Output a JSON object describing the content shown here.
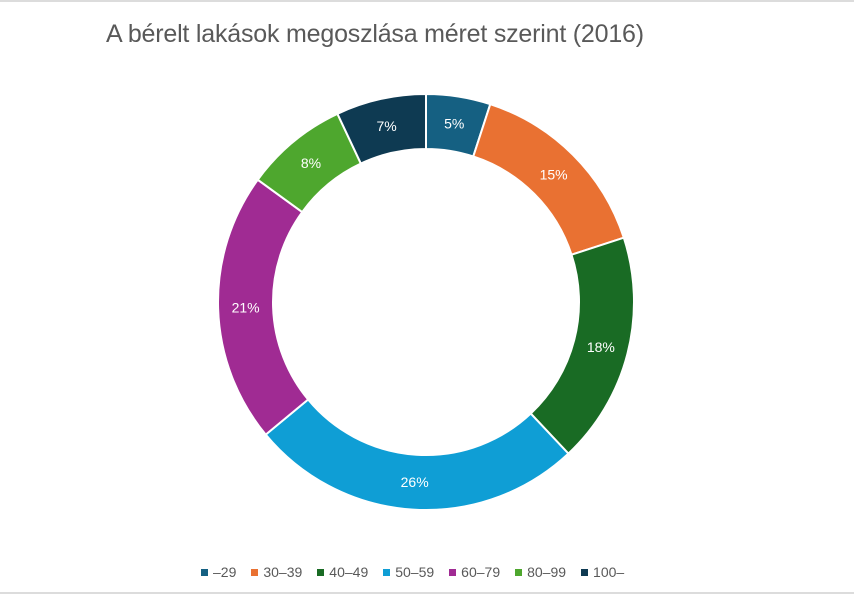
{
  "chart_data": {
    "type": "pie",
    "subtype": "doughnut",
    "title": "A bérelt lakások megoszlása méret szerint (2016)",
    "categories": [
      "–29",
      "30–39",
      "40–49",
      "50–59",
      "60–79",
      "80–99",
      "100–"
    ],
    "values": [
      5,
      15,
      18,
      26,
      21,
      8,
      7
    ],
    "labels": [
      "5%",
      "15%",
      "18%",
      "26%",
      "21%",
      "8%",
      "7%"
    ],
    "colors": [
      "#156082",
      "#E97132",
      "#196B24",
      "#0F9ED5",
      "#A02B93",
      "#4EA72E",
      "#0E3A52"
    ],
    "unit": "%",
    "start_angle_deg": 0,
    "direction": "clockwise",
    "legend_position": "bottom",
    "grid": false
  },
  "legend": {
    "items": [
      {
        "label": "–29",
        "color": "#156082"
      },
      {
        "label": "30–39",
        "color": "#E97132"
      },
      {
        "label": "40–49",
        "color": "#196B24"
      },
      {
        "label": "50–59",
        "color": "#0F9ED5"
      },
      {
        "label": "60–79",
        "color": "#A02B93"
      },
      {
        "label": "80–99",
        "color": "#4EA72E"
      },
      {
        "label": "100–",
        "color": "#0E3A52"
      }
    ]
  }
}
